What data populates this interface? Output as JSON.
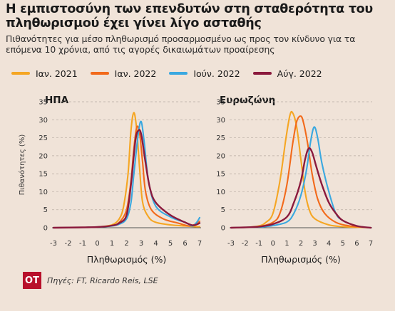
{
  "title": "Η εμπιστοσύνη των επενδυτών στη σταθερότητα του πληθωρισμού έχει γίνει λίγο ασταθής",
  "subtitle": "Πιθανότητες για μέσο πληθωρισμό προσαρμοσμένο ως προς τον κίνδυνο για τα επόμενα 10 χρόνια, από τις αγορές δικαιωμάτων προαίρεσης",
  "legend": [
    {
      "label": "Ιαν. 2021",
      "color": "#f5a623"
    },
    {
      "label": "Ιαν. 2022",
      "color": "#f26a1b"
    },
    {
      "label": "Ιούν. 2022",
      "color": "#3aa8e0"
    },
    {
      "label": "Αύγ. 2022",
      "color": "#8b1a3d"
    }
  ],
  "footer": {
    "logo": "OT",
    "source": "Πηγές: FT, Ricardo Reis, LSE"
  },
  "chart_data": [
    {
      "type": "line",
      "title": "ΗΠΑ",
      "xlabel": "Πληθωρισμός (%)",
      "ylabel": "Πιθανότητες (%)",
      "xlim": [
        -3,
        7
      ],
      "ylim": [
        0,
        35
      ],
      "xticks": [
        -3,
        -2,
        -1,
        0,
        1,
        2,
        3,
        4,
        5,
        6,
        7
      ],
      "yticks": [
        0,
        5,
        10,
        15,
        20,
        25,
        30,
        35
      ],
      "grid": "horizontal dashed",
      "series": [
        {
          "name": "Ιαν. 2021",
          "color": "#f5a623",
          "points": [
            [
              -3,
              0
            ],
            [
              -1,
              0.1
            ],
            [
              0,
              0.2
            ],
            [
              1,
              0.8
            ],
            [
              1.5,
              2.5
            ],
            [
              1.8,
              6
            ],
            [
              2.1,
              15
            ],
            [
              2.3,
              27
            ],
            [
              2.5,
              32
            ],
            [
              2.7,
              27
            ],
            [
              2.9,
              16
            ],
            [
              3.1,
              7
            ],
            [
              3.5,
              3
            ],
            [
              4,
              1.5
            ],
            [
              5,
              0.8
            ],
            [
              6,
              0.5
            ],
            [
              6.7,
              0.3
            ],
            [
              7,
              0.3
            ]
          ]
        },
        {
          "name": "Ιαν. 2022",
          "color": "#f26a1b",
          "points": [
            [
              -3,
              0
            ],
            [
              -1,
              0.1
            ],
            [
              0,
              0.2
            ],
            [
              1,
              0.6
            ],
            [
              1.5,
              1.5
            ],
            [
              2,
              5
            ],
            [
              2.3,
              13
            ],
            [
              2.5,
              22
            ],
            [
              2.7,
              28
            ],
            [
              2.9,
              26
            ],
            [
              3.1,
              18
            ],
            [
              3.3,
              10
            ],
            [
              3.7,
              5
            ],
            [
              4.5,
              2.5
            ],
            [
              5.5,
              1.3
            ],
            [
              6.3,
              0.5
            ],
            [
              6.8,
              1.2
            ],
            [
              7,
              1.8
            ]
          ]
        },
        {
          "name": "Ιούν. 2022",
          "color": "#3aa8e0",
          "points": [
            [
              -3,
              0
            ],
            [
              -1,
              0.1
            ],
            [
              0,
              0.2
            ],
            [
              1,
              0.5
            ],
            [
              1.5,
              1
            ],
            [
              2,
              2.5
            ],
            [
              2.3,
              7
            ],
            [
              2.5,
              15
            ],
            [
              2.8,
              26
            ],
            [
              3,
              29.5
            ],
            [
              3.2,
              24
            ],
            [
              3.5,
              13
            ],
            [
              4,
              6
            ],
            [
              5,
              3
            ],
            [
              6,
              1.5
            ],
            [
              6.5,
              0.5
            ],
            [
              6.8,
              1.5
            ],
            [
              7,
              2.8
            ]
          ]
        },
        {
          "name": "Αύγ. 2022",
          "color": "#8b1a3d",
          "points": [
            [
              -3,
              0
            ],
            [
              -1,
              0.1
            ],
            [
              0,
              0.2
            ],
            [
              1,
              0.6
            ],
            [
              1.5,
              1.3
            ],
            [
              2,
              3.5
            ],
            [
              2.3,
              12
            ],
            [
              2.6,
              24
            ],
            [
              2.8,
              27
            ],
            [
              3,
              26
            ],
            [
              3.3,
              18
            ],
            [
              3.6,
              11
            ],
            [
              4,
              7
            ],
            [
              5,
              3.5
            ],
            [
              6,
              1.5
            ],
            [
              6.5,
              0.7
            ],
            [
              6.8,
              0.9
            ],
            [
              7,
              1.3
            ]
          ]
        }
      ]
    },
    {
      "type": "line",
      "title": "Ευρωζώνη",
      "xlabel": "Πληθωρισμός (%)",
      "ylabel": "",
      "xlim": [
        -3,
        7
      ],
      "ylim": [
        0,
        35
      ],
      "xticks": [
        -3,
        -2,
        -1,
        0,
        1,
        2,
        3,
        4,
        5,
        6,
        7
      ],
      "yticks": [
        0,
        5,
        10,
        15,
        20,
        25,
        30,
        35
      ],
      "grid": "horizontal dashed",
      "series": [
        {
          "name": "Ιαν. 2021",
          "color": "#f5a623",
          "points": [
            [
              -3,
              0
            ],
            [
              -2,
              0.1
            ],
            [
              -1,
              0.5
            ],
            [
              -0.5,
              1.5
            ],
            [
              0,
              4
            ],
            [
              0.5,
              13
            ],
            [
              0.9,
              24
            ],
            [
              1.2,
              31
            ],
            [
              1.4,
              32
            ],
            [
              1.7,
              28
            ],
            [
              2,
              19
            ],
            [
              2.3,
              10
            ],
            [
              2.6,
              5
            ],
            [
              3,
              2.5
            ],
            [
              4,
              0.8
            ],
            [
              5,
              0.3
            ],
            [
              7,
              0
            ]
          ]
        },
        {
          "name": "Ιαν. 2022",
          "color": "#f26a1b",
          "points": [
            [
              -3,
              0
            ],
            [
              -2,
              0.1
            ],
            [
              -1,
              0.3
            ],
            [
              0,
              1.5
            ],
            [
              0.5,
              4
            ],
            [
              1,
              12
            ],
            [
              1.4,
              23
            ],
            [
              1.7,
              29.5
            ],
            [
              2,
              31
            ],
            [
              2.2,
              29
            ],
            [
              2.5,
              23
            ],
            [
              2.8,
              15
            ],
            [
              3.2,
              8
            ],
            [
              3.7,
              4
            ],
            [
              4.5,
              1.5
            ],
            [
              5.5,
              0.5
            ],
            [
              7,
              0
            ]
          ]
        },
        {
          "name": "Ιούν. 2022",
          "color": "#3aa8e0",
          "points": [
            [
              -3,
              0
            ],
            [
              -2,
              0.1
            ],
            [
              -1,
              0.2
            ],
            [
              0,
              0.6
            ],
            [
              1,
              1.6
            ],
            [
              1.5,
              4
            ],
            [
              2,
              9
            ],
            [
              2.4,
              16
            ],
            [
              2.7,
              24
            ],
            [
              2.95,
              28
            ],
            [
              3.2,
              25
            ],
            [
              3.5,
              18
            ],
            [
              4,
              10
            ],
            [
              4.5,
              4
            ],
            [
              5,
              2
            ],
            [
              6,
              0.5
            ],
            [
              7,
              0
            ]
          ]
        },
        {
          "name": "Αύγ. 2022",
          "color": "#8b1a3d",
          "points": [
            [
              -3,
              0
            ],
            [
              -2,
              0.1
            ],
            [
              -1,
              0.3
            ],
            [
              0,
              1
            ],
            [
              1,
              3
            ],
            [
              1.5,
              7
            ],
            [
              2,
              13
            ],
            [
              2.3,
              19
            ],
            [
              2.55,
              22
            ],
            [
              2.8,
              21
            ],
            [
              3.1,
              17
            ],
            [
              3.5,
              12
            ],
            [
              4,
              7
            ],
            [
              4.5,
              4
            ],
            [
              5,
              2
            ],
            [
              6,
              0.5
            ],
            [
              7,
              0
            ]
          ]
        }
      ]
    }
  ]
}
